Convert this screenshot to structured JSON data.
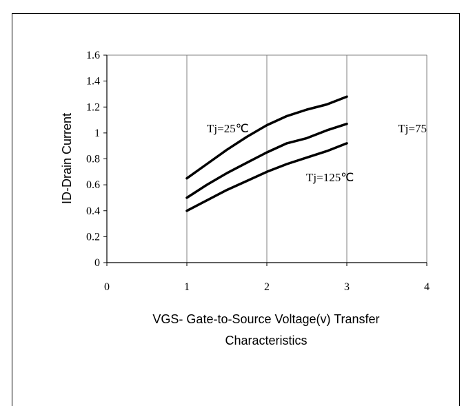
{
  "chart_data": {
    "type": "line",
    "title": "",
    "xlabel_lines": [
      "VGS- Gate-to-Source Voltage(v) Transfer",
      "Characteristics"
    ],
    "ylabel": "ID-Drain Current",
    "xlim": [
      0,
      4
    ],
    "ylim": [
      0,
      1.6
    ],
    "x_ticks": [
      "0",
      "1",
      "2",
      "3",
      "4"
    ],
    "y_ticks": [
      "0",
      "0.2",
      "0.4",
      "0.6",
      "0.8",
      "1",
      "1.2",
      "1.4",
      "1.6"
    ],
    "grid": "vertical",
    "series": [
      {
        "name": "Tj=25℃",
        "x": [
          1,
          1.25,
          1.5,
          1.75,
          2,
          2.25,
          2.5,
          2.75,
          3
        ],
        "y": [
          0.65,
          0.76,
          0.87,
          0.97,
          1.06,
          1.13,
          1.18,
          1.22,
          1.28
        ]
      },
      {
        "name": "Tj=75",
        "x": [
          1,
          1.25,
          1.5,
          1.75,
          2,
          2.25,
          2.5,
          2.75,
          3
        ],
        "y": [
          0.5,
          0.6,
          0.69,
          0.77,
          0.85,
          0.92,
          0.96,
          1.02,
          1.07
        ]
      },
      {
        "name": "Tj=125℃",
        "x": [
          1,
          1.25,
          1.5,
          1.75,
          2,
          2.25,
          2.5,
          2.75,
          3
        ],
        "y": [
          0.4,
          0.48,
          0.56,
          0.63,
          0.7,
          0.76,
          0.81,
          0.86,
          0.92
        ]
      }
    ],
    "colors": {
      "line": "#000000",
      "grid": "#808080",
      "axis": "#000000"
    }
  }
}
